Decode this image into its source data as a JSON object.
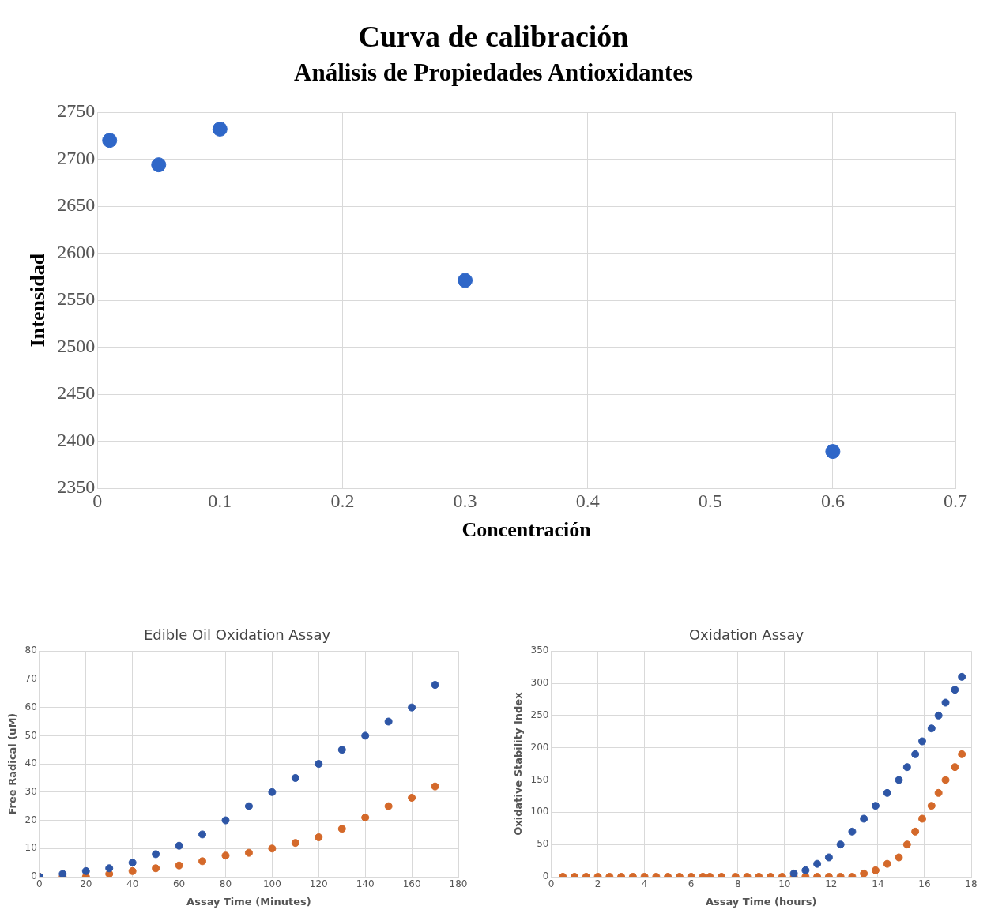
{
  "chart_data": [
    {
      "type": "scatter",
      "title": "Curva de calibración",
      "subtitle": "Análisis de Propiedades Antioxidantes",
      "xlabel": "Concentración",
      "ylabel": "Intensidad",
      "xlim": [
        0,
        0.7
      ],
      "xticks": [
        0,
        0.1,
        0.2,
        0.3,
        0.4,
        0.5,
        0.6,
        0.7
      ],
      "ylim": [
        2350,
        2750
      ],
      "yticks": [
        2350,
        2400,
        2450,
        2500,
        2550,
        2600,
        2650,
        2700,
        2750
      ],
      "grid": true,
      "legend": false,
      "marker": "circle",
      "series": [
        {
          "color": "#2f67c8",
          "x": [
            0.01,
            0.05,
            0.1,
            0.3,
            0.6
          ],
          "values": [
            2720,
            2694,
            2732,
            2571,
            2389
          ]
        }
      ]
    },
    {
      "type": "scatter",
      "title": "Edible Oil Oxidation Assay",
      "xlabel": "Assay Time (Minutes)",
      "ylabel": "Free Radical (uM)",
      "xlim": [
        0,
        180
      ],
      "xticks": [
        0,
        20,
        40,
        60,
        80,
        100,
        120,
        140,
        160,
        180
      ],
      "ylim": [
        0,
        80
      ],
      "yticks": [
        0,
        10,
        20,
        30,
        40,
        50,
        60,
        70,
        80
      ],
      "grid": true,
      "legend": false,
      "marker": "circle",
      "series": [
        {
          "color": "#2e56a6",
          "x": [
            0,
            10,
            20,
            30,
            40,
            50,
            60,
            70,
            80,
            90,
            100,
            110,
            120,
            130,
            140,
            150,
            160,
            170
          ],
          "values": [
            0,
            1,
            2,
            3,
            5,
            8,
            11,
            15,
            20,
            25,
            30,
            35,
            40,
            45,
            50,
            55,
            60,
            68
          ]
        },
        {
          "color": "#d4692a",
          "x": [
            0,
            10,
            20,
            30,
            40,
            50,
            60,
            70,
            80,
            90,
            100,
            110,
            120,
            130,
            140,
            150,
            160,
            170
          ],
          "values": [
            0,
            0,
            0,
            1,
            2,
            3,
            4,
            5.5,
            7.5,
            8.5,
            10,
            12,
            14,
            17,
            21,
            25,
            28,
            32
          ]
        }
      ]
    },
    {
      "type": "scatter",
      "title": "Oxidation Assay",
      "xlabel": "Assay Time (hours)",
      "ylabel": "Oxidative Stability Index",
      "xlim": [
        0,
        18
      ],
      "xticks": [
        0,
        2,
        4,
        6,
        8,
        10,
        12,
        14,
        16,
        18
      ],
      "ylim": [
        0,
        350
      ],
      "yticks": [
        0,
        50,
        100,
        150,
        200,
        250,
        300,
        350
      ],
      "grid": true,
      "legend": false,
      "marker": "circle",
      "series": [
        {
          "color": "#2e56a6",
          "x": [
            10.4,
            10.9,
            11.4,
            11.9,
            12.4,
            12.9,
            13.4,
            13.9,
            14.4,
            14.9,
            15.25,
            15.6,
            15.9,
            16.3,
            16.6,
            16.9,
            17.3,
            17.6
          ],
          "values": [
            5,
            10,
            20,
            30,
            50,
            70,
            90,
            110,
            130,
            150,
            170,
            190,
            210,
            230,
            250,
            270,
            290,
            310
          ]
        },
        {
          "color": "#d4692a",
          "x": [
            0.5,
            1,
            1.5,
            2,
            2.5,
            3,
            3.5,
            4,
            4.5,
            5,
            5.5,
            6,
            6.5,
            6.8,
            7.3,
            7.9,
            8.4,
            8.9,
            9.4,
            9.9,
            10.4,
            10.9,
            11.4,
            11.9,
            12.4,
            12.9,
            13.4,
            13.9,
            14.4,
            14.9,
            15.25,
            15.6,
            15.9,
            16.3,
            16.6,
            16.9,
            17.3,
            17.6
          ],
          "values": [
            0,
            0,
            0,
            0,
            0,
            0,
            0,
            0,
            0,
            0,
            0,
            0,
            0,
            0,
            0,
            0,
            0,
            0,
            0,
            0,
            0,
            0,
            0,
            0,
            0,
            0,
            5,
            10,
            20,
            30,
            50,
            70,
            90,
            110,
            130,
            150,
            170,
            190
          ]
        }
      ]
    }
  ]
}
